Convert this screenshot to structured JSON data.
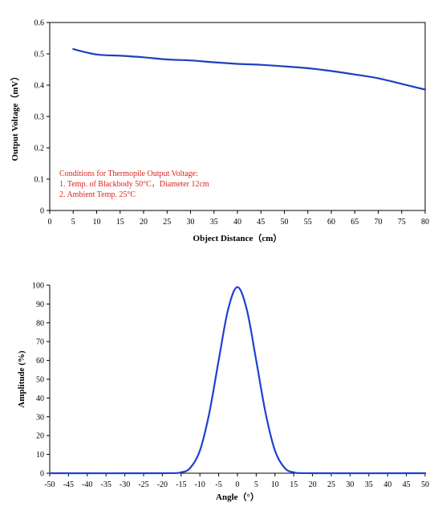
{
  "chart_data": [
    {
      "type": "line",
      "xlabel": "Object Distance（cm）",
      "ylabel": "Output Voltage（mV）",
      "xlim": [
        0,
        80
      ],
      "ylim": [
        0,
        0.6
      ],
      "xticks": [
        "0",
        "5",
        "10",
        "15",
        "20",
        "25",
        "30",
        "35",
        "40",
        "45",
        "50",
        "55",
        "60",
        "65",
        "70",
        "75",
        "80"
      ],
      "yticks": [
        "0",
        "0.1",
        "0.2",
        "0.3",
        "0.4",
        "0.5",
        "0.6"
      ],
      "grid": false,
      "line_color": "#1f3fbf",
      "series": [
        {
          "x": [
            5,
            10,
            15,
            20,
            25,
            30,
            35,
            40,
            45,
            50,
            55,
            60,
            65,
            70,
            75,
            80
          ],
          "y": [
            0.515,
            0.498,
            0.494,
            0.489,
            0.482,
            0.479,
            0.473,
            0.468,
            0.465,
            0.46,
            0.454,
            0.445,
            0.434,
            0.422,
            0.404,
            0.386
          ]
        }
      ],
      "annotations": [
        "Conditions for Thermopile Output Voltage:",
        "1. Temp. of Blackbody 50°C，Diameter 12cm",
        "2. Ambient Temp. 25°C"
      ],
      "annotation_color": "#e0201c"
    },
    {
      "type": "line",
      "xlabel": "Angle（°）",
      "ylabel": "Amplitude (%)",
      "xlim": [
        -50,
        50
      ],
      "ylim": [
        0,
        100
      ],
      "xticks": [
        "-50",
        "-45",
        "-40",
        "-35",
        "-30",
        "-25",
        "-20",
        "-15",
        "-10",
        "-5",
        "0",
        "5",
        "10",
        "15",
        "20",
        "25",
        "30",
        "35",
        "40",
        "45",
        "50"
      ],
      "yticks": [
        "0",
        "10",
        "20",
        "30",
        "40",
        "50",
        "60",
        "70",
        "80",
        "90",
        "100"
      ],
      "grid": false,
      "line_color": "#1f3fd6",
      "series": [
        {
          "x": [
            -50,
            -20,
            -15,
            -12.5,
            -10,
            -7.5,
            -5,
            -2.5,
            0,
            2.5,
            5,
            7.5,
            10,
            12.5,
            15,
            20,
            50
          ],
          "y": [
            0,
            0,
            0.5,
            3,
            12,
            32,
            60,
            87,
            99,
            87,
            60,
            32,
            12,
            3,
            0.5,
            0,
            0
          ]
        }
      ]
    }
  ]
}
